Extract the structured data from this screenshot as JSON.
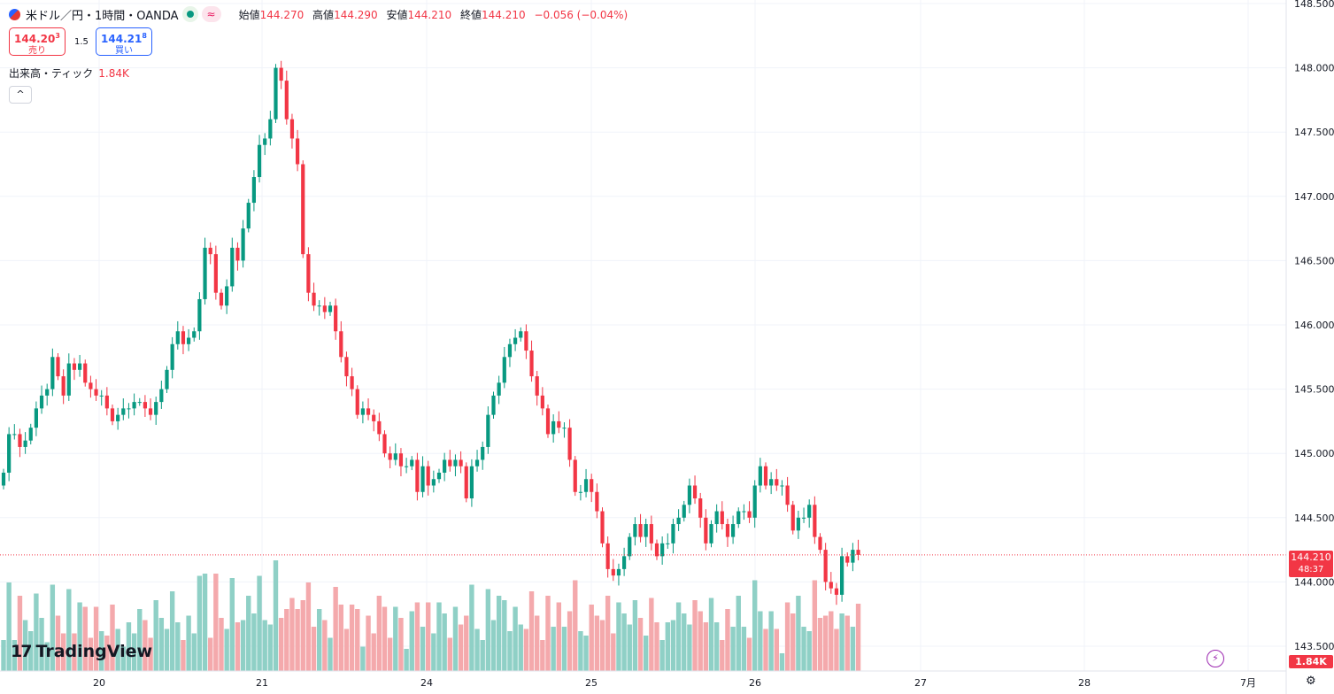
{
  "header": {
    "symbol_title": "米ドル／円・1時間・OANDA",
    "ohlc": [
      {
        "label": "始値",
        "value": "144.270"
      },
      {
        "label": "高値",
        "value": "144.290"
      },
      {
        "label": "安値",
        "value": "144.210"
      },
      {
        "label": "終値",
        "value": "144.210"
      }
    ],
    "change": "−0.056 (−0.04%)",
    "mode_badge": "≈"
  },
  "trade": {
    "sell_price_main": "144.20",
    "sell_price_sup": "3",
    "sell_label": "売り",
    "spread": "1.5",
    "buy_price_main": "144.21",
    "buy_price_sup": "8",
    "buy_label": "買い"
  },
  "volume_indicator": {
    "label": "出来高・ティック",
    "value": "1.84K"
  },
  "price_tag": {
    "price": "144.210",
    "countdown": "48:37"
  },
  "volume_tag": "1.84K",
  "brand": "TradingView",
  "colors": {
    "up": "#089981",
    "down": "#f23645",
    "up_vol": "#8fd0c6",
    "down_vol": "#f4a9ac",
    "grid": "#f0f3fa"
  },
  "chart_data": {
    "type": "candlestick",
    "y_ticks": [
      "148.500",
      "148.000",
      "147.500",
      "147.000",
      "146.500",
      "146.000",
      "145.500",
      "145.000",
      "144.500",
      "144.000",
      "143.500"
    ],
    "ylim": [
      143.5,
      148.5
    ],
    "x_ticks": [
      "20",
      "21",
      "24",
      "25",
      "26",
      "27",
      "28",
      "7月"
    ],
    "last_price": 144.21,
    "candles_close": [
      144.85,
      145.15,
      145.15,
      145.05,
      145.1,
      145.2,
      145.35,
      145.45,
      145.5,
      145.75,
      145.6,
      145.45,
      145.7,
      145.65,
      145.7,
      145.55,
      145.5,
      145.45,
      145.45,
      145.35,
      145.25,
      145.3,
      145.35,
      145.35,
      145.4,
      145.4,
      145.35,
      145.3,
      145.4,
      145.5,
      145.65,
      145.85,
      145.95,
      145.85,
      145.9,
      145.95,
      146.2,
      146.6,
      146.55,
      146.25,
      146.15,
      146.3,
      146.6,
      146.5,
      146.75,
      146.95,
      147.15,
      147.4,
      147.45,
      147.6,
      148.0,
      147.9,
      147.6,
      147.45,
      147.25,
      146.55,
      146.25,
      146.15,
      146.15,
      146.1,
      146.15,
      145.95,
      145.75,
      145.6,
      145.5,
      145.3,
      145.35,
      145.3,
      145.25,
      145.15,
      145.0,
      144.95,
      145.0,
      144.9,
      144.9,
      144.95,
      144.7,
      144.9,
      144.75,
      144.8,
      144.85,
      144.95,
      144.9,
      144.95,
      144.9,
      144.65,
      144.9,
      144.95,
      145.05,
      145.3,
      145.45,
      145.55,
      145.75,
      145.85,
      145.9,
      145.95,
      145.8,
      145.6,
      145.45,
      145.35,
      145.15,
      145.25,
      145.2,
      145.2,
      144.95,
      144.7,
      144.7,
      144.8,
      144.7,
      144.55,
      144.3,
      144.1,
      144.05,
      144.1,
      144.2,
      144.35,
      144.45,
      144.35,
      144.45,
      144.3,
      144.2,
      144.3,
      144.3,
      144.45,
      144.5,
      144.6,
      144.75,
      144.65,
      144.5,
      144.3,
      144.45,
      144.55,
      144.45,
      144.35,
      144.45,
      144.55,
      144.55,
      144.5,
      144.75,
      144.9,
      144.75,
      144.8,
      144.75,
      144.75,
      144.6,
      144.4,
      144.5,
      144.5,
      144.6,
      144.35,
      144.25,
      144.0,
      143.95,
      143.9,
      144.2,
      144.15,
      144.25,
      144.21
    ]
  }
}
